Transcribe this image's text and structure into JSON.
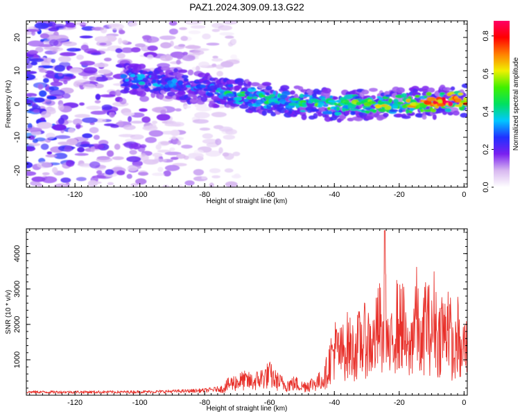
{
  "title": "PAZ1.2024.309.09.13.G22",
  "chart_data": [
    {
      "type": "heatmap",
      "title": "PAZ1.2024.309.09.13.G22",
      "xlabel": "Height of straight line (km)",
      "ylabel": "Frequency (Hz)",
      "xlim": [
        -135,
        1
      ],
      "ylim": [
        -25,
        25
      ],
      "xticks": [
        -120,
        -100,
        -80,
        -60,
        -40,
        -20,
        0
      ],
      "yticks": [
        -20,
        -10,
        0,
        10,
        20
      ],
      "colorbar": {
        "label": "Normalized spectral amplitude",
        "range": [
          0.0,
          0.88
        ],
        "ticks": [
          0.0,
          0.2,
          0.4,
          0.6,
          0.8
        ],
        "colormap": [
          "#ffffff",
          "#d8b8f0",
          "#7a20f0",
          "#2030ff",
          "#00c8ff",
          "#00e060",
          "#40f000",
          "#f0f000",
          "#ff7f00",
          "#ff0000",
          "#ff0066"
        ]
      },
      "ridge": {
        "x": [
          -105,
          -100,
          -90,
          -80,
          -72,
          -60,
          -50,
          -40,
          -30,
          -20,
          -10,
          0
        ],
        "freq": [
          8.0,
          7.5,
          6.0,
          4.5,
          3.0,
          1.5,
          0.5,
          -0.5,
          0.0,
          0.0,
          0.5,
          1.0
        ],
        "peak_amplitude": [
          0.3,
          0.35,
          0.3,
          0.3,
          0.45,
          0.45,
          0.5,
          0.5,
          0.55,
          0.6,
          0.75,
          0.8
        ]
      }
    },
    {
      "type": "line",
      "xlabel": "Height of straight line (km)",
      "ylabel": "SNR (10 * v/v)",
      "xlim": [
        -135,
        1
      ],
      "ylim": [
        0,
        4700
      ],
      "xticks": [
        -120,
        -100,
        -80,
        -60,
        -40,
        -20,
        0
      ],
      "yticks": [
        1000,
        2000,
        3000,
        4000
      ],
      "color": "#e8302a",
      "series": [
        {
          "x": [
            -135,
            -125,
            -115,
            -105,
            -95,
            -85,
            -80,
            -75,
            -72,
            -68,
            -65,
            -62,
            -60,
            -58,
            -55,
            -52,
            -50,
            -48,
            -45,
            -43,
            -41,
            -40,
            -38,
            -36,
            -34,
            -32,
            -30,
            -28,
            -26,
            -25,
            -24.5,
            -24,
            -23,
            -21,
            -20,
            -19,
            -18,
            -17,
            -16,
            -15,
            -14,
            -13,
            -12,
            -10,
            -9,
            -8,
            -7,
            -6,
            -5,
            -4,
            -3,
            -2,
            -1,
            0,
            1
          ],
          "values": [
            100,
            100,
            100,
            100,
            110,
            130,
            150,
            200,
            400,
            500,
            450,
            600,
            700,
            500,
            350,
            400,
            300,
            350,
            450,
            600,
            1300,
            1600,
            1400,
            1700,
            1500,
            1800,
            1900,
            1700,
            2400,
            1600,
            4650,
            2200,
            1300,
            2500,
            2200,
            2600,
            1700,
            1300,
            2000,
            2900,
            2100,
            1400,
            2700,
            2000,
            2800,
            1700,
            2400,
            2000,
            2850,
            1800,
            1200,
            2100,
            1200,
            1700,
            1600
          ]
        }
      ]
    }
  ]
}
